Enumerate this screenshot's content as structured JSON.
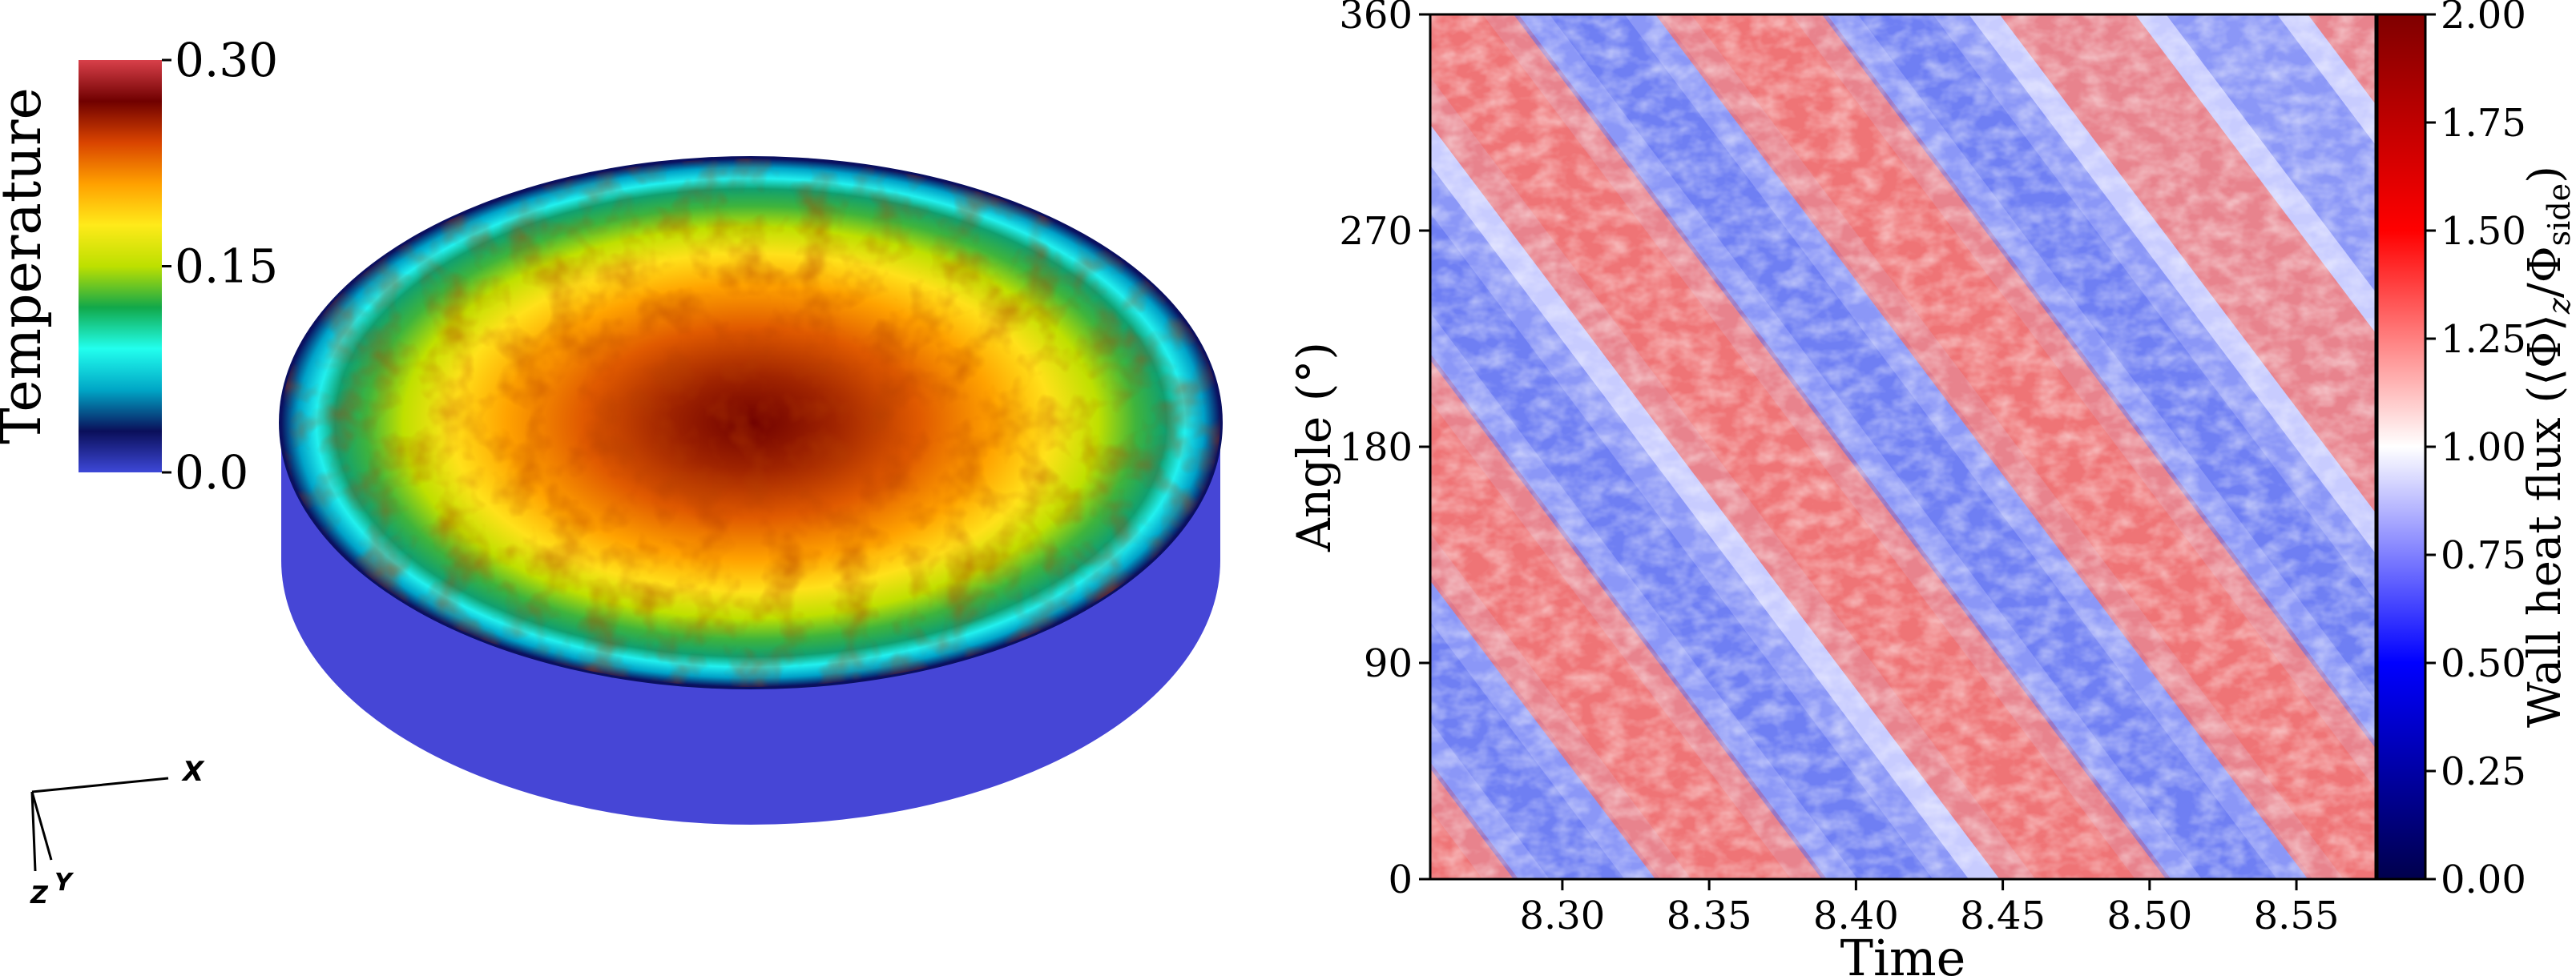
{
  "chart_data": [
    {
      "type": "heatmap",
      "title": "",
      "colorbar": {
        "label": "Temperature",
        "ticks": [
          "0.30",
          "0.15",
          "0.0"
        ],
        "tick_values": [
          0.3,
          0.15,
          0.0
        ],
        "range": [
          0.0,
          0.3
        ],
        "colormap": "jet",
        "colors": [
          "#3d48d8",
          "#0a0f5a",
          "#00a6c6",
          "#22ffee",
          "#11a84a",
          "#bde000",
          "#ffea1a",
          "#ffa000",
          "#d94400",
          "#700000",
          "#d8404a"
        ]
      },
      "axes_triad": {
        "x": "X",
        "y": "Y",
        "z": "Z"
      },
      "cylinder": {
        "side_color": "#4646d6",
        "rim_color": "#0a1060"
      }
    },
    {
      "type": "heatmap",
      "xlabel": "Time",
      "ylabel": "Angle (°)",
      "xlim": [
        8.255,
        8.577
      ],
      "ylim": [
        0,
        360
      ],
      "x_ticks": [
        "8.30",
        "8.35",
        "8.40",
        "8.45",
        "8.50",
        "8.55"
      ],
      "x_tick_values": [
        8.3,
        8.35,
        8.4,
        8.45,
        8.5,
        8.55
      ],
      "y_ticks": [
        "0",
        "90",
        "180",
        "270",
        "360"
      ],
      "y_tick_values": [
        0,
        90,
        180,
        270,
        360
      ],
      "pattern": {
        "angular_drift_deg_per_time": -1620,
        "stripe_period_time": 0.105,
        "red_band_centers_at_angle_0": [
          8.262,
          8.367,
          8.472,
          8.577
        ]
      },
      "colorbar": {
        "label_main": "Wall heat flux",
        "label_math_open": "(⟨Φ⟩",
        "label_math_sub_z": "z",
        "label_math_slash": "/Φ",
        "label_math_sub_side": "side",
        "label_math_close": ")",
        "range": [
          0.0,
          2.0
        ],
        "ticks": [
          "0.00",
          "0.25",
          "0.50",
          "0.75",
          "1.00",
          "1.25",
          "1.50",
          "1.75",
          "2.00"
        ],
        "tick_values": [
          0.0,
          0.25,
          0.5,
          0.75,
          1.0,
          1.25,
          1.5,
          1.75,
          2.0
        ],
        "colormap": "seismic",
        "colors": [
          "#00004c",
          "#0000ff",
          "#ffffff",
          "#ff0000",
          "#7f0000"
        ]
      }
    }
  ]
}
